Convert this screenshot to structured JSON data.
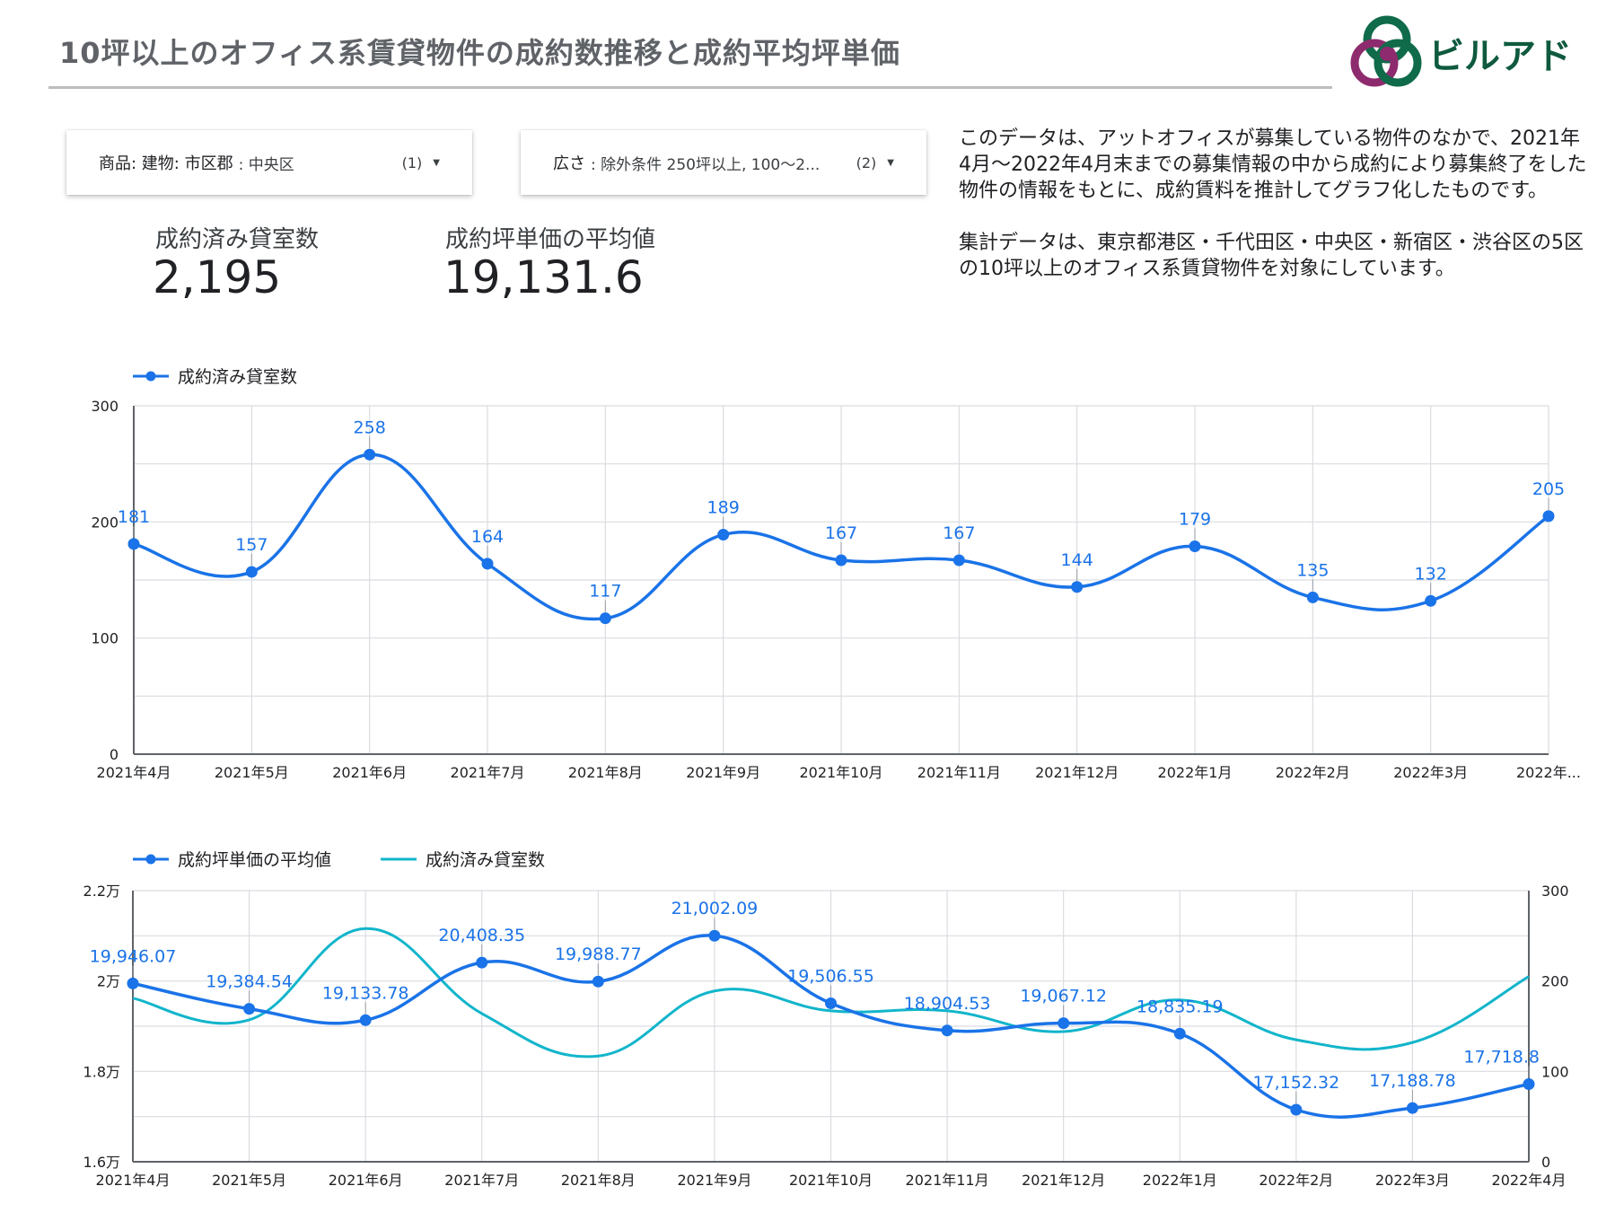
{
  "header": {
    "title": "10坪以上のオフィス系賃貸物件の成約数推移と成約平均坪単価",
    "logo_text": "ビルアド"
  },
  "filters": [
    {
      "label": "商品: 建物: 市区郡",
      "value": ": 中央区",
      "count": "(1)"
    },
    {
      "label": "広さ",
      "value": ": 除外条件 250坪以上, 100〜2...",
      "count": "(2)"
    }
  ],
  "kpis": [
    {
      "label": "成約済み貸室数",
      "value": "2,195"
    },
    {
      "label": "成約坪単価の平均値",
      "value": "19,131.6"
    }
  ],
  "description": {
    "paragraph1": "このデータは、アットオフィスが募集している物件のなかで、2021年4月〜2022年4月末までの募集情報の中から成約により募集終了をした物件の情報をもとに、成約賃料を推計してグラフ化したものです。",
    "paragraph2": "集計データは、東京都港区・千代田区・中央区・新宿区・渋谷区の5区の10坪以上のオフィス系賃貸物件を対象にしています。"
  },
  "colors": {
    "blue": "#1a73e8",
    "teal": "#12b5cb",
    "grid": "#dadce0",
    "title": "#5f6368",
    "logo_green": "#0f6b4a",
    "logo_purple": "#8e2b6e"
  },
  "chart_data": [
    {
      "type": "line",
      "categories": [
        "2021年4月",
        "2021年5月",
        "2021年6月",
        "2021年7月",
        "2021年8月",
        "2021年9月",
        "2021年10月",
        "2021年11月",
        "2021年12月",
        "2022年1月",
        "2022年2月",
        "2022年3月",
        "2022年..."
      ],
      "series": [
        {
          "name": "成約済み貸室数",
          "values": [
            181,
            157,
            258,
            164,
            117,
            189,
            167,
            167,
            144,
            179,
            135,
            132,
            205
          ],
          "labels": [
            "181",
            "157",
            "258",
            "164",
            "117",
            "189",
            "167",
            "167",
            "144",
            "179",
            "135",
            "132",
            "205"
          ]
        }
      ],
      "ylim": [
        0,
        300
      ],
      "yticks": [
        "0",
        "100",
        "200",
        "300"
      ],
      "grid": true,
      "legend": "top-left"
    },
    {
      "type": "line",
      "categories": [
        "2021年4月",
        "2021年5月",
        "2021年6月",
        "2021年7月",
        "2021年8月",
        "2021年9月",
        "2021年10月",
        "2021年11月",
        "2021年12月",
        "2022年1月",
        "2022年2月",
        "2022年3月",
        "2022年4月"
      ],
      "series": [
        {
          "name": "成約坪単価の平均値",
          "axis": "left",
          "values": [
            19946.07,
            19384.54,
            19133.78,
            20408.35,
            19988.77,
            21002.09,
            19506.55,
            18904.53,
            19067.12,
            18835.19,
            17152.32,
            17188.78,
            17718.8
          ],
          "labels": [
            "19,946.07",
            "19,384.54",
            "19,133.78",
            "20,408.35",
            "19,988.77",
            "21,002.09",
            "19,506.55",
            "18,904.53",
            "19,067.12",
            "18,835.19",
            "17,152.32",
            "17,188.78",
            "17,718.8"
          ]
        },
        {
          "name": "成約済み貸室数",
          "axis": "right",
          "values": [
            181,
            157,
            258,
            164,
            117,
            189,
            167,
            167,
            144,
            179,
            135,
            132,
            205
          ]
        }
      ],
      "ylim_left": [
        16000,
        22000
      ],
      "yticks_left": [
        "1.6万",
        "1.8万",
        "2万",
        "2.2万"
      ],
      "ylim_right": [
        0,
        300
      ],
      "yticks_right": [
        "0",
        "100",
        "200",
        "300"
      ],
      "grid": true,
      "legend": "top-left"
    }
  ]
}
